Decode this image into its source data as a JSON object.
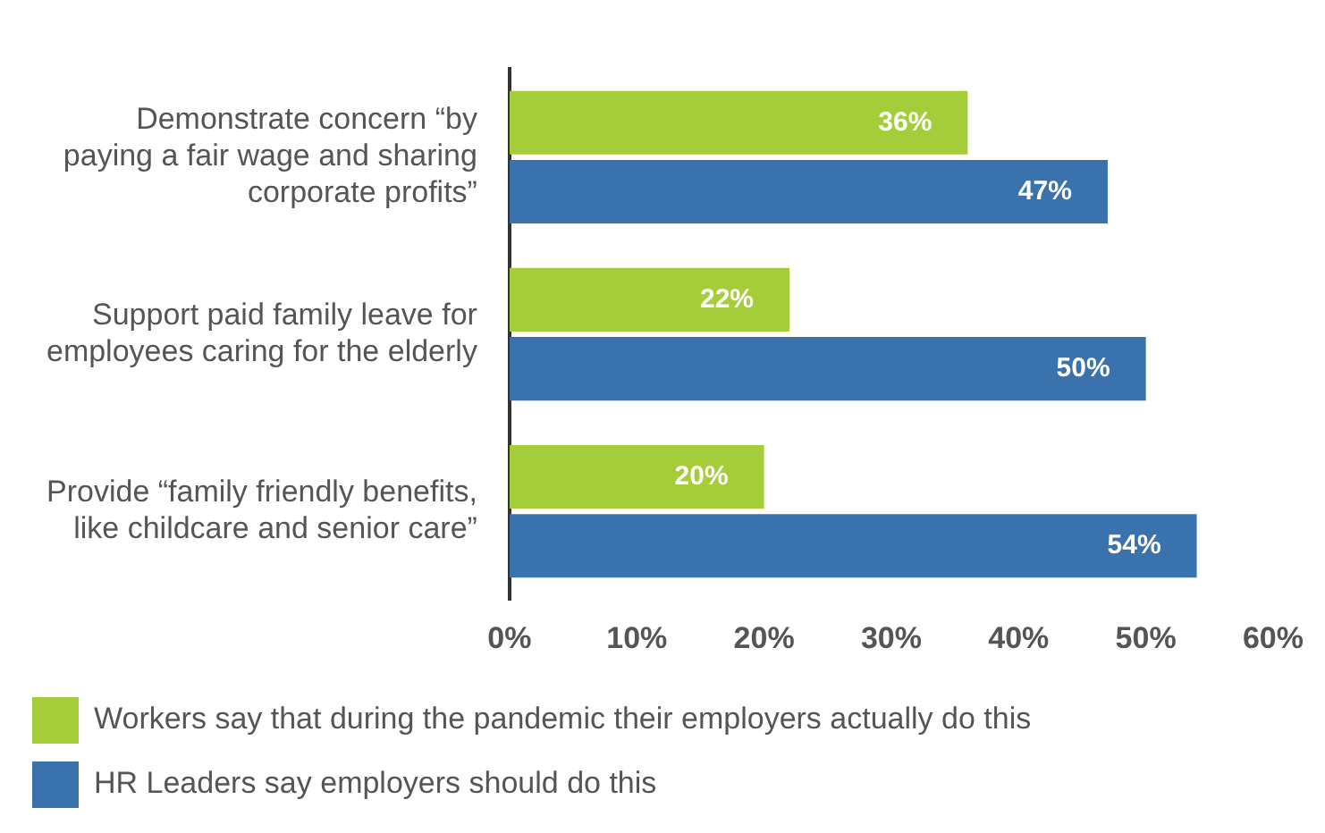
{
  "chart_data": {
    "type": "bar",
    "orientation": "horizontal",
    "categories": [
      "Demonstrate concern “by paying a fair wage and sharing corporate profits”",
      "Support paid family leave for employees caring for the elderly",
      "Provide “family friendly benefits, like childcare and senior care”"
    ],
    "series": [
      {
        "name": "Workers say that during the pandemic their employers actually do this",
        "color": "#a5cd39",
        "values": [
          36,
          22,
          20
        ],
        "value_labels": [
          "36%",
          "22%",
          "20%"
        ]
      },
      {
        "name": "HR Leaders say employers should do this",
        "color": "#3a72ad",
        "values": [
          47,
          50,
          54
        ],
        "value_labels": [
          "47%",
          "50%",
          "54%"
        ]
      }
    ],
    "xlim": [
      0,
      60
    ],
    "xticks": [
      {
        "value": 0,
        "label": "0%"
      },
      {
        "value": 10,
        "label": "10%"
      },
      {
        "value": 20,
        "label": "20%"
      },
      {
        "value": 30,
        "label": "30%"
      },
      {
        "value": 40,
        "label": "40%"
      },
      {
        "value": 50,
        "label": "50%"
      },
      {
        "value": 60,
        "label": "60%"
      }
    ],
    "grid": false,
    "legend": "bottom"
  }
}
